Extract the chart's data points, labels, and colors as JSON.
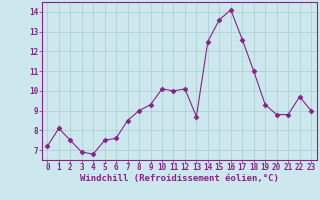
{
  "x": [
    0,
    1,
    2,
    3,
    4,
    5,
    6,
    7,
    8,
    9,
    10,
    11,
    12,
    13,
    14,
    15,
    16,
    17,
    18,
    19,
    20,
    21,
    22,
    23
  ],
  "y": [
    7.2,
    8.1,
    7.5,
    6.9,
    6.8,
    7.5,
    7.6,
    8.5,
    9.0,
    9.3,
    10.1,
    10.0,
    10.1,
    8.7,
    12.5,
    13.6,
    14.1,
    12.6,
    11.0,
    9.3,
    8.8,
    8.8,
    9.7,
    9.0
  ],
  "line_color": "#882288",
  "marker": "D",
  "marker_size": 2.5,
  "xlabel": "Windchill (Refroidissement éolien,°C)",
  "ylabel": "",
  "ylim": [
    6.5,
    14.5
  ],
  "xlim": [
    -0.5,
    23.5
  ],
  "yticks": [
    7,
    8,
    9,
    10,
    11,
    12,
    13,
    14
  ],
  "xticks": [
    0,
    1,
    2,
    3,
    4,
    5,
    6,
    7,
    8,
    9,
    10,
    11,
    12,
    13,
    14,
    15,
    16,
    17,
    18,
    19,
    20,
    21,
    22,
    23
  ],
  "background_color": "#cce8ee",
  "grid_color": "#aacccc",
  "axis_color": "#882288",
  "tick_color": "#882288",
  "label_color": "#882288",
  "font_size_label": 6.5,
  "font_size_tick": 5.5
}
